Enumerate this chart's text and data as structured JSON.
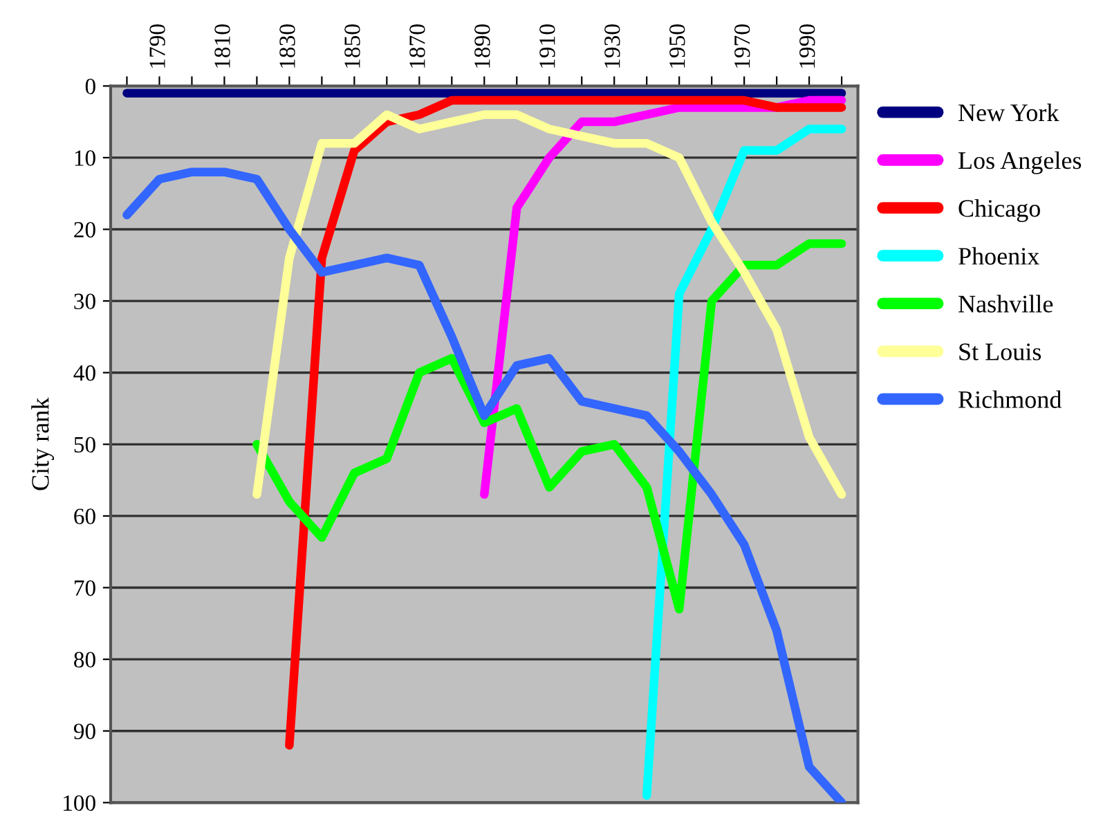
{
  "chart_data": {
    "type": "line",
    "ylabel": "City rank",
    "x": [
      1780,
      1790,
      1800,
      1810,
      1820,
      1830,
      1840,
      1850,
      1860,
      1870,
      1880,
      1890,
      1900,
      1910,
      1920,
      1930,
      1940,
      1950,
      1960,
      1970,
      1980,
      1990,
      2000
    ],
    "series": [
      {
        "name": "New York",
        "color": "#000080",
        "values": [
          1,
          1,
          1,
          1,
          1,
          1,
          1,
          1,
          1,
          1,
          1,
          1,
          1,
          1,
          1,
          1,
          1,
          1,
          1,
          1,
          1,
          1,
          1
        ]
      },
      {
        "name": "Los Angeles",
        "color": "#ff00ff",
        "values": [
          null,
          null,
          null,
          null,
          null,
          null,
          null,
          null,
          null,
          null,
          null,
          57,
          17,
          10,
          5,
          5,
          4,
          3,
          3,
          3,
          3,
          2,
          2
        ]
      },
      {
        "name": "Chicago",
        "color": "#ff0000",
        "values": [
          null,
          null,
          null,
          null,
          null,
          92,
          24,
          9,
          5,
          4,
          2,
          2,
          2,
          2,
          2,
          2,
          2,
          2,
          2,
          2,
          3,
          3,
          3
        ]
      },
      {
        "name": "Phoenix",
        "color": "#00ffff",
        "values": [
          null,
          null,
          null,
          null,
          null,
          null,
          null,
          null,
          null,
          null,
          null,
          null,
          null,
          null,
          null,
          null,
          99,
          29,
          20,
          9,
          9,
          6,
          6
        ]
      },
      {
        "name": "Nashville",
        "color": "#00ff00",
        "values": [
          null,
          null,
          null,
          null,
          50,
          58,
          63,
          54,
          52,
          40,
          38,
          47,
          45,
          56,
          51,
          50,
          56,
          73,
          30,
          25,
          25,
          22,
          22
        ]
      },
      {
        "name": "St Louis",
        "color": "#ffff99",
        "values": [
          null,
          null,
          null,
          null,
          57,
          24,
          8,
          8,
          4,
          6,
          5,
          4,
          4,
          6,
          7,
          8,
          8,
          10,
          19,
          26,
          34,
          49,
          57
        ]
      },
      {
        "name": "Richmond",
        "color": "#3366ff",
        "values": [
          18,
          13,
          12,
          12,
          13,
          20,
          26,
          25,
          24,
          25,
          35,
          46,
          39,
          38,
          44,
          45,
          46,
          51,
          57,
          64,
          76,
          95,
          100
        ]
      }
    ],
    "xlim": [
      1775,
      2005
    ],
    "xticks": [
      {
        "value": 1780,
        "label": null
      },
      1790,
      {
        "value": 1800,
        "label": null
      },
      1810,
      {
        "value": 1820,
        "label": null
      },
      1830,
      {
        "value": 1840,
        "label": null
      },
      1850,
      {
        "value": 1860,
        "label": null
      },
      1870,
      {
        "value": 1880,
        "label": null
      },
      1890,
      {
        "value": 1900,
        "label": null
      },
      1910,
      {
        "value": 1920,
        "label": null
      },
      1930,
      {
        "value": 1940,
        "label": null
      },
      1950,
      {
        "value": 1960,
        "label": null
      },
      1970,
      {
        "value": 1980,
        "label": null
      },
      1990,
      {
        "value": 2000,
        "label": null
      }
    ],
    "ylim": [
      100,
      0
    ],
    "yticks": [
      0,
      10,
      20,
      30,
      40,
      50,
      60,
      70,
      80,
      90,
      100
    ],
    "grid": "y",
    "legend": "right",
    "line_style": "solid",
    "marker": "none"
  }
}
